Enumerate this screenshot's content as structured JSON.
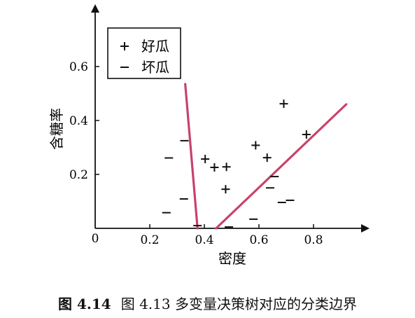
{
  "chart_data": {
    "type": "scatter",
    "xlabel": "密度",
    "ylabel": "含糖率",
    "xlim": [
      0,
      0.95
    ],
    "ylim": [
      0,
      0.8
    ],
    "x_ticks": [
      {
        "value": 0.2,
        "label": "0.2"
      },
      {
        "value": 0.4,
        "label": "0.4"
      },
      {
        "value": 0.6,
        "label": "0.6"
      },
      {
        "value": 0.8,
        "label": "0.8"
      }
    ],
    "y_ticks": [
      {
        "value": 0.2,
        "label": "0.2"
      },
      {
        "value": 0.4,
        "label": "0.4"
      },
      {
        "value": 0.6,
        "label": "0.6"
      }
    ],
    "origin_label": "0",
    "legend": {
      "placement": "top-left",
      "items": [
        {
          "marker": "+",
          "label": "好瓜"
        },
        {
          "marker": "−",
          "label": "坏瓜"
        }
      ]
    },
    "series": [
      {
        "marker": "+",
        "points": [
          [
            0.403,
            0.257
          ],
          [
            0.437,
            0.226
          ],
          [
            0.481,
            0.228
          ],
          [
            0.478,
            0.145
          ],
          [
            0.588,
            0.308
          ],
          [
            0.63,
            0.262
          ],
          [
            0.691,
            0.462
          ],
          [
            0.774,
            0.348
          ]
        ]
      },
      {
        "marker": "−",
        "points": [
          [
            0.27,
            0.261
          ],
          [
            0.327,
            0.325
          ],
          [
            0.325,
            0.109
          ],
          [
            0.261,
            0.058
          ],
          [
            0.375,
            0.01
          ],
          [
            0.49,
            0.005
          ],
          [
            0.58,
            0.034
          ],
          [
            0.641,
            0.15
          ],
          [
            0.657,
            0.192
          ],
          [
            0.684,
            0.096
          ],
          [
            0.714,
            0.104
          ]
        ]
      }
    ],
    "boundaries": [
      {
        "color": "#c8426a",
        "from": [
          0.33,
          0.535
        ],
        "to": [
          0.375,
          0.0
        ]
      },
      {
        "color": "#c8426a",
        "from": [
          0.443,
          0.0
        ],
        "to": [
          0.92,
          0.46
        ]
      }
    ]
  },
  "caption": {
    "number": "图 4.14",
    "text": "图 4.13 多变量决策树对应的分类边界"
  }
}
